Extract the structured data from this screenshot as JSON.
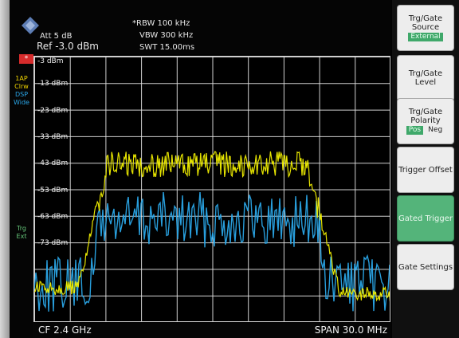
{
  "colors": {
    "trace_primary": "#f2f000",
    "trace_secondary": "#2aa6e8",
    "softkey_green": "#54b47a",
    "accent_red": "#d62b2b"
  },
  "header": {
    "att": "Att  5 dB",
    "ref": "Ref -3.0 dBm",
    "rbw": "*RBW  100 kHz",
    "vbw": "VBW  300 kHz",
    "swt": "SWT  15.00ms"
  },
  "left_strip": {
    "marker": "*",
    "labels": [
      "1AP",
      "Clrw",
      "DSP",
      "Wide"
    ],
    "trg": "Trg",
    "ext": "Ext"
  },
  "spectrum": {
    "y_ticks": [
      "-3 dBm",
      "-13 dBm",
      "-23 dBm",
      "-33 dBm",
      "-43 dBm",
      "-53 dBm",
      "-63 dBm",
      "-73 dBm"
    ]
  },
  "footer": {
    "center": "CF 2.4 GHz",
    "span": "SPAN 30.0 MHz"
  },
  "softkeys": [
    {
      "label": "Trg/Gate Source",
      "sub": "External",
      "style": "gray"
    },
    {
      "label": "Trg/Gate Level",
      "style": "gray"
    },
    {
      "label": "Trg/Gate Polarity",
      "opt1": "Pos",
      "opt2": "Neg",
      "style": "gray"
    },
    {
      "label": "Trigger Offset",
      "style": "gray"
    },
    {
      "label": "Gated Trigger",
      "style": "green"
    },
    {
      "label": "Gate Settings",
      "style": "gray"
    }
  ]
}
